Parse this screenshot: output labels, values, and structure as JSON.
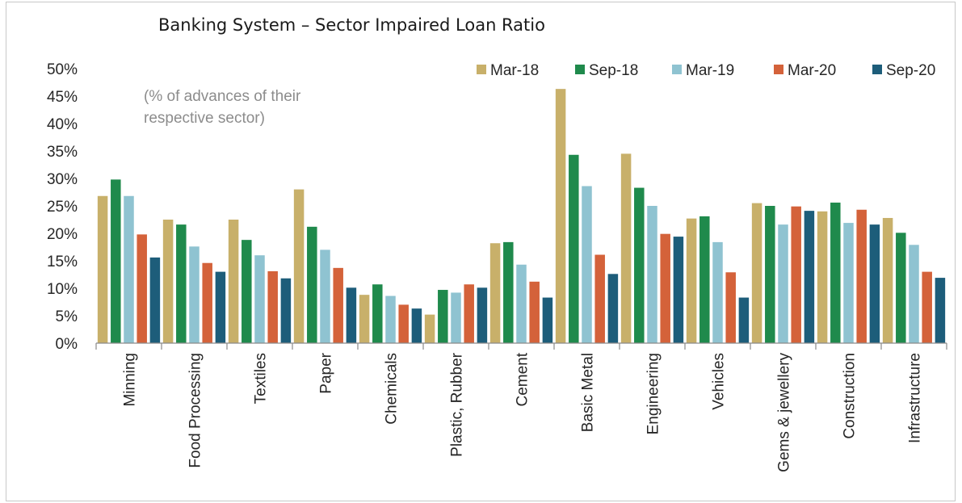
{
  "chart_data": {
    "type": "bar",
    "title": "Banking System – Sector Impaired Loan Ratio",
    "note_lines": [
      "(% of advances of their",
      "respective sector)"
    ],
    "ylim": [
      0,
      50
    ],
    "yticks": [
      "0%",
      "5%",
      "10%",
      "15%",
      "20%",
      "25%",
      "30%",
      "35%",
      "40%",
      "45%",
      "50%"
    ],
    "legend_position": "top-right",
    "categories": [
      "Minning",
      "Food Processing",
      "Textiles",
      "Paper",
      "Chemicals",
      "Plastic, Rubber",
      "Cement",
      "Basic Metal",
      "Engineering",
      "Vehicles",
      "Gems & jewellery",
      "Construction",
      "Infrastructure"
    ],
    "series": [
      {
        "name": "Mar-18",
        "color": "#c8b06a",
        "values": [
          26.8,
          22.5,
          22.5,
          28.0,
          8.8,
          5.2,
          18.2,
          46.3,
          34.5,
          22.7,
          25.5,
          24.0,
          22.8
        ]
      },
      {
        "name": "Sep-18",
        "color": "#1f8a4c",
        "values": [
          29.8,
          21.6,
          18.8,
          21.2,
          10.7,
          9.7,
          18.4,
          34.3,
          28.3,
          23.1,
          25.0,
          25.6,
          20.1
        ]
      },
      {
        "name": "Mar-19",
        "color": "#8fc3d1",
        "values": [
          26.8,
          17.6,
          16.0,
          17.0,
          8.6,
          9.2,
          14.3,
          28.6,
          25.0,
          18.4,
          21.6,
          21.9,
          17.9
        ]
      },
      {
        "name": "Mar-20",
        "color": "#d4623a",
        "values": [
          19.8,
          14.6,
          13.1,
          13.7,
          7.0,
          10.7,
          11.2,
          16.1,
          19.9,
          12.9,
          24.9,
          24.3,
          13.0
        ]
      },
      {
        "name": "Sep-20",
        "color": "#1d5d7a",
        "values": [
          15.6,
          13.0,
          11.8,
          10.1,
          6.3,
          10.1,
          8.3,
          12.6,
          19.4,
          8.3,
          24.1,
          21.6,
          11.9
        ]
      }
    ]
  }
}
